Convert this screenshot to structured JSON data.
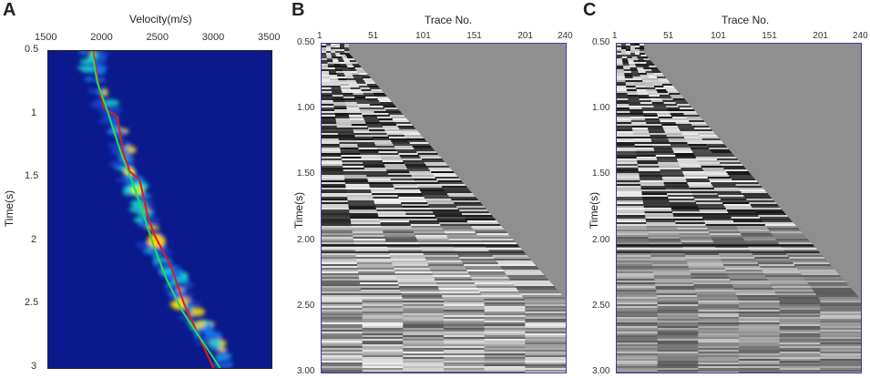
{
  "panels": {
    "a": {
      "letter": "A",
      "x_title": "Velocity(m/s)",
      "y_title": "Time(s)",
      "x_ticks": [
        "1500",
        "2000",
        "2500",
        "3000",
        "3500"
      ],
      "y_ticks": [
        "0.5",
        "1",
        "1.5",
        "2",
        "2.5",
        "3"
      ]
    },
    "b": {
      "letter": "B",
      "x_title": "Trace No.",
      "y_title": "Time(s)",
      "x_ticks": [
        "1",
        "51",
        "101",
        "151",
        "201",
        "240"
      ],
      "y_ticks": [
        "0.50",
        "1.00",
        "1.50",
        "2.00",
        "2.50",
        "3.00"
      ]
    },
    "c": {
      "letter": "C",
      "x_title": "Trace No.",
      "y_title": "Time(s)",
      "x_ticks": [
        "1",
        "51",
        "101",
        "151",
        "201",
        "240"
      ],
      "y_ticks": [
        "0.50",
        "1.00",
        "1.50",
        "2.00",
        "2.50",
        "3.00"
      ]
    }
  },
  "colors": {
    "semblance_background": "#0a1a8c",
    "red_curve": "#e11a1a",
    "green_curve": "#22dd55",
    "seismic_gray": "#8a8a8a",
    "frame_blue": "#3a3a9a"
  },
  "chart_data": {
    "type": "line",
    "title": "",
    "xlabel": "Velocity(m/s)",
    "ylabel": "Time(s)",
    "xlim": [
      1500,
      3500
    ],
    "ylim": [
      3,
      0.5
    ],
    "series": [
      {
        "color": "#e11a1a",
        "points": [
          [
            1900,
            0.5
          ],
          [
            1960,
            0.8
          ],
          [
            2000,
            0.95
          ],
          [
            2120,
            1.02
          ],
          [
            2170,
            1.3
          ],
          [
            2230,
            1.45
          ],
          [
            2320,
            1.52
          ],
          [
            2390,
            1.8
          ],
          [
            2450,
            1.95
          ],
          [
            2600,
            2.2
          ],
          [
            2720,
            2.5
          ],
          [
            2850,
            2.75
          ],
          [
            2980,
            3.0
          ]
        ]
      },
      {
        "color": "#22dd55",
        "points": [
          [
            1890,
            0.5
          ],
          [
            1940,
            0.75
          ],
          [
            2040,
            1.0
          ],
          [
            2150,
            1.3
          ],
          [
            2260,
            1.55
          ],
          [
            2350,
            1.78
          ],
          [
            2450,
            2.05
          ],
          [
            2560,
            2.3
          ],
          [
            2700,
            2.55
          ],
          [
            2850,
            2.75
          ],
          [
            3040,
            3.0
          ]
        ]
      }
    ]
  }
}
